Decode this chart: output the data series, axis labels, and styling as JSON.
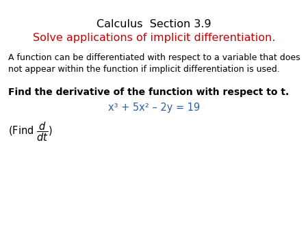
{
  "title_line1": "Calculus  Section 3.9",
  "title_line2": "Solve applications of implicit differentiation.",
  "title_line1_color": "#000000",
  "title_line2_color": "#CC0000",
  "body_text": "A function can be differentiated with respect to a variable that does\nnot appear within the function if implicit differentiation is used.",
  "bold_instruction": "Find the derivative of the function with respect to t.",
  "equation": "x³ + 5x² – 2y = 19",
  "equation_color": "#2E5FA3",
  "background_color": "#ffffff",
  "title1_fontsize": 11.5,
  "title2_fontsize": 11.5,
  "body_fontsize": 9.0,
  "bold_fontsize": 10.0,
  "equation_fontsize": 10.5,
  "find_fontsize": 10.5
}
